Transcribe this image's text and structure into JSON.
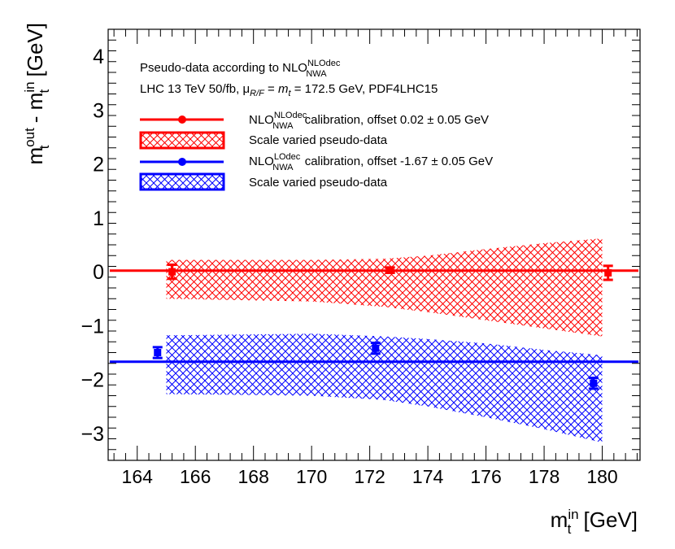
{
  "chart_data": {
    "type": "scatter",
    "xlabel": {
      "main": "m",
      "sub": "t",
      "sup": "in",
      "unit": " [GeV]"
    },
    "ylabel": {
      "m1": "m",
      "sub1": "t",
      "sup1": "out",
      "mid": " - ",
      "m2": "m",
      "sub2": "t",
      "sup2": "in",
      "unit": " [GeV]"
    },
    "xlim": [
      163.0,
      181.3
    ],
    "ylim": [
      -3.5,
      4.5
    ],
    "xticks": [
      164,
      166,
      168,
      170,
      172,
      174,
      176,
      178,
      180
    ],
    "yticks": [
      -3,
      -2,
      -1,
      0,
      1,
      2,
      3,
      4
    ],
    "header": {
      "line1_prefix": "Pseudo-data according to NLO",
      "line1_sup": "NLOdec",
      "line1_sub": "NWA",
      "line2_a": "LHC 13 TeV 50/fb, μ",
      "line2_sub": "R/F",
      "line2_b": " = ",
      "line2_mt": "m",
      "line2_mt_sub": "t",
      "line2_c": " = 172.5 GeV, PDF4LHC15"
    },
    "series": [
      {
        "name": "NLO NLOdec NWA calibration",
        "color": "#ff0000",
        "offset": 0.02,
        "offset_err": 0.05,
        "legend_prefix": "NLO",
        "legend_sup": "NLOdec",
        "legend_sub": "NWA",
        "legend_suffix": " calibration, offset 0.02 ± 0.05 GeV",
        "band_label": "Scale varied pseudo-data",
        "points": [
          {
            "x": 165.2,
            "y": 0.0,
            "err": 0.13
          },
          {
            "x": 172.7,
            "y": 0.03,
            "err": 0.05
          },
          {
            "x": 180.2,
            "y": -0.02,
            "err": 0.13
          }
        ],
        "band": [
          {
            "x": 165.0,
            "low": -0.5,
            "high": 0.22
          },
          {
            "x": 170.0,
            "low": -0.55,
            "high": 0.22
          },
          {
            "x": 172.5,
            "low": -0.65,
            "high": 0.24
          },
          {
            "x": 174.0,
            "low": -0.75,
            "high": 0.3
          },
          {
            "x": 176.0,
            "low": -0.9,
            "high": 0.42
          },
          {
            "x": 178.0,
            "low": -1.05,
            "high": 0.53
          },
          {
            "x": 180.0,
            "low": -1.2,
            "high": 0.62
          }
        ]
      },
      {
        "name": "NLO LOdec NWA calibration",
        "color": "#0000ff",
        "offset": -1.67,
        "offset_err": 0.05,
        "legend_prefix": "NLO",
        "legend_sup": "LOdec",
        "legend_sub": "NWA",
        "legend_suffix": " calibration, offset -1.67 ± 0.05 GeV",
        "band_label": "Scale varied pseudo-data",
        "points": [
          {
            "x": 164.7,
            "y": -1.5,
            "err": 0.1
          },
          {
            "x": 172.2,
            "y": -1.42,
            "err": 0.1
          },
          {
            "x": 179.7,
            "y": -2.07,
            "err": 0.1
          }
        ],
        "band": [
          {
            "x": 165.0,
            "low": -2.27,
            "high": -1.18
          },
          {
            "x": 170.0,
            "low": -2.3,
            "high": -1.15
          },
          {
            "x": 172.5,
            "low": -2.38,
            "high": -1.2
          },
          {
            "x": 174.0,
            "low": -2.5,
            "high": -1.25
          },
          {
            "x": 176.0,
            "low": -2.7,
            "high": -1.33
          },
          {
            "x": 178.0,
            "low": -2.92,
            "high": -1.45
          },
          {
            "x": 180.0,
            "low": -3.17,
            "high": -1.55
          }
        ]
      }
    ]
  }
}
